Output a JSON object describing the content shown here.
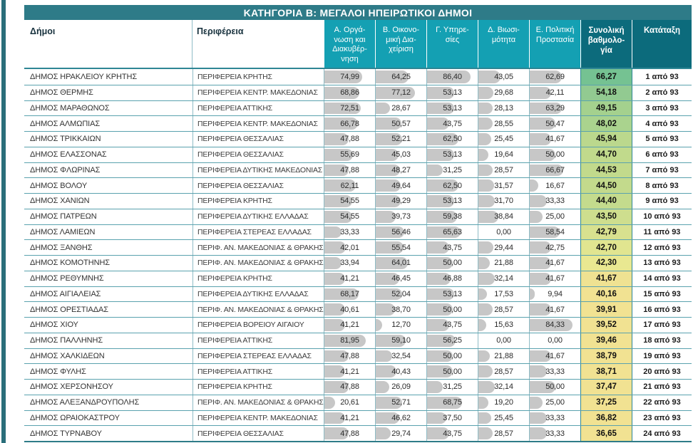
{
  "title": "ΚΑΤΗΓΟΡΙΑ Β: ΜΕΓΑΛΟΙ ΗΠΕΙΡΩΤΙΚΟΙ ΔΗΜΟΙ",
  "columns": {
    "municipality": "Δήμοι",
    "region": "Περιφέρεια",
    "a": "Α. Οργά-\nνωση και\nΔιακυβέρ-\nνηση",
    "b": "Β. Οικονο-\nμική Δια-\nχείριση",
    "c": "Γ. Υπηρε-\nσίες",
    "d": "Δ. Βιωσι-\nμότητα",
    "e": "Ε. Πολιτική\nΠροστασία",
    "total": "Συνολική\nβαθμολο-\nγία",
    "rank": "Κατάταξη"
  },
  "colors": {
    "accent_teal": "#2e7b88",
    "subheader_teal": "#14a0b3",
    "dark_header_teal": "#0c6b7c",
    "bar_gray": "#c7c7c7"
  },
  "rows": [
    {
      "name": "ΔΗΜΟΣ ΗΡΑΚΛΕΙΟΥ ΚΡΗΤΗΣ",
      "region": "ΠΕΡΙΦΕΡΕΙΑ ΚΡΗΤΗΣ",
      "a": "74,99",
      "b": "64,25",
      "c": "86,40",
      "d": "43,05",
      "e": "62,69",
      "total": "66,27",
      "rank": "1 από 93",
      "total_bg": "#75c292"
    },
    {
      "name": "ΔΗΜΟΣ ΘΕΡΜΗΣ",
      "region": "ΠΕΡΙΦΕΡΕΙΑ ΚΕΝΤΡ. ΜΑΚΕΔΟΝΙΑΣ",
      "a": "68,86",
      "b": "77,12",
      "c": "53,13",
      "d": "29,68",
      "e": "42,11",
      "total": "54,18",
      "rank": "2 από 93",
      "total_bg": "#92ca91"
    },
    {
      "name": "ΔΗΜΟΣ ΜΑΡΑΘΩΝΟΣ",
      "region": "ΠΕΡΙΦΕΡΕΙΑ ΑΤΤΙΚΗΣ",
      "a": "72,51",
      "b": "28,67",
      "c": "53,13",
      "d": "28,13",
      "e": "63,29",
      "total": "49,15",
      "rank": "3 από 93",
      "total_bg": "#a4d18e"
    },
    {
      "name": "ΔΗΜΟΣ ΑΛΜΩΠΙΑΣ",
      "region": "ΠΕΡΙΦΕΡΕΙΑ ΚΕΝΤΡ. ΜΑΚΕΔΟΝΙΑΣ",
      "a": "66,78",
      "b": "50,57",
      "c": "43,75",
      "d": "28,55",
      "e": "50,47",
      "total": "48,02",
      "rank": "4 από 93",
      "total_bg": "#aad38e"
    },
    {
      "name": "ΔΗΜΟΣ ΤΡΙΚΚΑΙΩΝ",
      "region": "ΠΕΡΙΦΕΡΕΙΑ ΘΕΣΣΑΛΙΑΣ",
      "a": "47,88",
      "b": "52,21",
      "c": "62,50",
      "d": "25,45",
      "e": "41,67",
      "total": "45,94",
      "rank": "5 από 93",
      "total_bg": "#bbd88d"
    },
    {
      "name": "ΔΗΜΟΣ ΕΛΑΣΣΟΝΑΣ",
      "region": "ΠΕΡΙΦΕΡΕΙΑ ΘΕΣΣΑΛΙΑΣ",
      "a": "55,69",
      "b": "45,03",
      "c": "53,13",
      "d": "19,64",
      "e": "50,00",
      "total": "44,70",
      "rank": "6 από 93",
      "total_bg": "#c1da8c"
    },
    {
      "name": "ΔΗΜΟΣ ΦΛΩΡΙΝΑΣ",
      "region": "ΠΕΡΙΦΕΡΕΙΑ ΔΥΤΙΚΗΣ ΜΑΚΕΔΟΝΙΑΣ",
      "a": "47,88",
      "b": "48,27",
      "c": "31,25",
      "d": "28,57",
      "e": "66,67",
      "total": "44,53",
      "rank": "7 από 93",
      "total_bg": "#c2da8c"
    },
    {
      "name": "ΔΗΜΟΣ ΒΟΛΟΥ",
      "region": "ΠΕΡΙΦΕΡΕΙΑ ΘΕΣΣΑΛΙΑΣ",
      "a": "62,11",
      "b": "49,64",
      "c": "62,50",
      "d": "31,57",
      "e": "16,67",
      "total": "44,50",
      "rank": "8 από 93",
      "total_bg": "#c3da8c"
    },
    {
      "name": "ΔΗΜΟΣ ΧΑΝΙΩΝ",
      "region": "ΠΕΡΙΦΕΡΕΙΑ ΚΡΗΤΗΣ",
      "a": "54,55",
      "b": "49,29",
      "c": "53,13",
      "d": "31,70",
      "e": "33,33",
      "total": "44,40",
      "rank": "9 από 93",
      "total_bg": "#c4db8d"
    },
    {
      "name": "ΔΗΜΟΣ ΠΑΤΡΕΩΝ",
      "region": "ΠΕΡΙΦΕΡΕΙΑ ΔΥΤΙΚΗΣ ΕΛΛΑΔΑΣ",
      "a": "54,55",
      "b": "39,73",
      "c": "59,38",
      "d": "38,84",
      "e": "25,00",
      "total": "43,50",
      "rank": "10 από 93",
      "total_bg": "#cede8e"
    },
    {
      "name": "ΔΗΜΟΣ ΛΑΜΙΕΩΝ",
      "region": "ΠΕΡΙΦΕΡΕΙΑ ΣΤΕΡΕΑΣ ΕΛΛΑΔΑΣ",
      "a": "33,33",
      "b": "56,46",
      "c": "65,63",
      "d": "0,00",
      "e": "58,54",
      "total": "42,79",
      "rank": "11 από 93",
      "total_bg": "#d8e18f"
    },
    {
      "name": "ΔΗΜΟΣ ΞΑΝΘΗΣ",
      "region": "ΠΕΡΙΦ. ΑΝ. ΜΑΚΕΔΟΝΙΑΣ & ΘΡΑΚΗΣ",
      "a": "42,01",
      "b": "55,54",
      "c": "43,75",
      "d": "29,44",
      "e": "42,75",
      "total": "42,70",
      "rank": "12 από 93",
      "total_bg": "#e1e590"
    },
    {
      "name": "ΔΗΜΟΣ ΚΟΜΟΤΗΝΗΣ",
      "region": "ΠΕΡΙΦ. ΑΝ. ΜΑΚΕΔΟΝΙΑΣ & ΘΡΑΚΗΣ",
      "a": "33,94",
      "b": "64,01",
      "c": "50,00",
      "d": "21,88",
      "e": "41,67",
      "total": "42,30",
      "rank": "13 από 93",
      "total_bg": "#e9e891"
    },
    {
      "name": "ΔΗΜΟΣ ΡΕΘΥΜΝΗΣ",
      "region": "ΠΕΡΙΦΕΡΕΙΑ ΚΡΗΤΗΣ",
      "a": "41,21",
      "b": "46,45",
      "c": "46,88",
      "d": "32,14",
      "e": "41,67",
      "total": "41,67",
      "rank": "14 από 93",
      "total_bg": "#efe292"
    },
    {
      "name": "ΔΗΜΟΣ ΑΙΓΙΑΛΕΙΑΣ",
      "region": "ΠΕΡΙΦΕΡΕΙΑ ΔΥΤΙΚΗΣ ΕΛΛΑΔΑΣ",
      "a": "68,17",
      "b": "52,04",
      "c": "53,13",
      "d": "17,53",
      "e": "9,94",
      "total": "40,16",
      "rank": "15 από 93",
      "total_bg": "#f1e292"
    },
    {
      "name": "ΔΗΜΟΣ ΟΡΕΣΤΙΑΔΑΣ",
      "region": "ΠΕΡΙΦ. ΑΝ. ΜΑΚΕΔΟΝΙΑΣ & ΘΡΑΚΗΣ",
      "a": "40,61",
      "b": "38,70",
      "c": "50,00",
      "d": "28,57",
      "e": "41,67",
      "total": "39,91",
      "rank": "16 από 93",
      "total_bg": "#f1e292"
    },
    {
      "name": "ΔΗΜΟΣ ΧΙΟΥ",
      "region": "ΠΕΡΙΦΕΡΕΙΑ ΒΟΡΕΙΟΥ ΑΙΓΑΙΟΥ",
      "a": "41,21",
      "b": "12,70",
      "c": "43,75",
      "d": "15,63",
      "e": "84,33",
      "total": "39,52",
      "rank": "17 από 93",
      "total_bg": "#f1e292"
    },
    {
      "name": "ΔΗΜΟΣ ΠΑΛΛΗΝΗΣ",
      "region": "ΠΕΡΙΦΕΡΕΙΑ ΑΤΤΙΚΗΣ",
      "a": "81,95",
      "b": "59,10",
      "c": "56,25",
      "d": "0,00",
      "e": "0,00",
      "total": "39,46",
      "rank": "18 από 93",
      "total_bg": "#f1e292"
    },
    {
      "name": "ΔΗΜΟΣ ΧΑΛΚΙΔΕΩΝ",
      "region": "ΠΕΡΙΦΕΡΕΙΑ ΣΤΕΡΕΑΣ ΕΛΛΑΔΑΣ",
      "a": "47,88",
      "b": "32,54",
      "c": "50,00",
      "d": "21,88",
      "e": "41,67",
      "total": "38,79",
      "rank": "19 από 93",
      "total_bg": "#f1e292"
    },
    {
      "name": "ΔΗΜΟΣ ΦΥΛΗΣ",
      "region": "ΠΕΡΙΦΕΡΕΙΑ ΑΤΤΙΚΗΣ",
      "a": "41,21",
      "b": "40,43",
      "c": "50,00",
      "d": "28,57",
      "e": "33,33",
      "total": "38,71",
      "rank": "20 από 93",
      "total_bg": "#f1e292"
    },
    {
      "name": "ΔΗΜΟΣ ΧΕΡΣΟΝΗΣΟΥ",
      "region": "ΠΕΡΙΦΕΡΕΙΑ ΚΡΗΤΗΣ",
      "a": "47,88",
      "b": "26,09",
      "c": "31,25",
      "d": "32,14",
      "e": "50,00",
      "total": "37,47",
      "rank": "21 από 93",
      "total_bg": "#f1e292"
    },
    {
      "name": "ΔΗΜΟΣ ΑΛΕΞΑΝΔΡΟΥΠΟΛΗΣ",
      "region": "ΠΕΡΙΦ. ΑΝ. ΜΑΚΕΔΟΝΙΑΣ & ΘΡΑΚΗΣ",
      "a": "20,61",
      "b": "52,71",
      "c": "68,75",
      "d": "19,20",
      "e": "25,00",
      "total": "37,25",
      "rank": "22 από 93",
      "total_bg": "#f1e292"
    },
    {
      "name": "ΔΗΜΟΣ ΩΡΑΙΟΚΑΣΤΡΟΥ",
      "region": "ΠΕΡΙΦΕΡΕΙΑ ΚΕΝΤΡ. ΜΑΚΕΔΟΝΙΑΣ",
      "a": "41,21",
      "b": "46,62",
      "c": "37,50",
      "d": "25,45",
      "e": "33,33",
      "total": "36,82",
      "rank": "23 από 93",
      "total_bg": "#f1e292"
    },
    {
      "name": "ΔΗΜΟΣ ΤΥΡΝΑΒΟΥ",
      "region": "ΠΕΡΙΦΕΡΕΙΑ ΘΕΣΣΑΛΙΑΣ",
      "a": "47,88",
      "b": "29,74",
      "c": "43,75",
      "d": "28,57",
      "e": "33,33",
      "total": "36,65",
      "rank": "24 από 93",
      "total_bg": "#f1e292"
    }
  ]
}
